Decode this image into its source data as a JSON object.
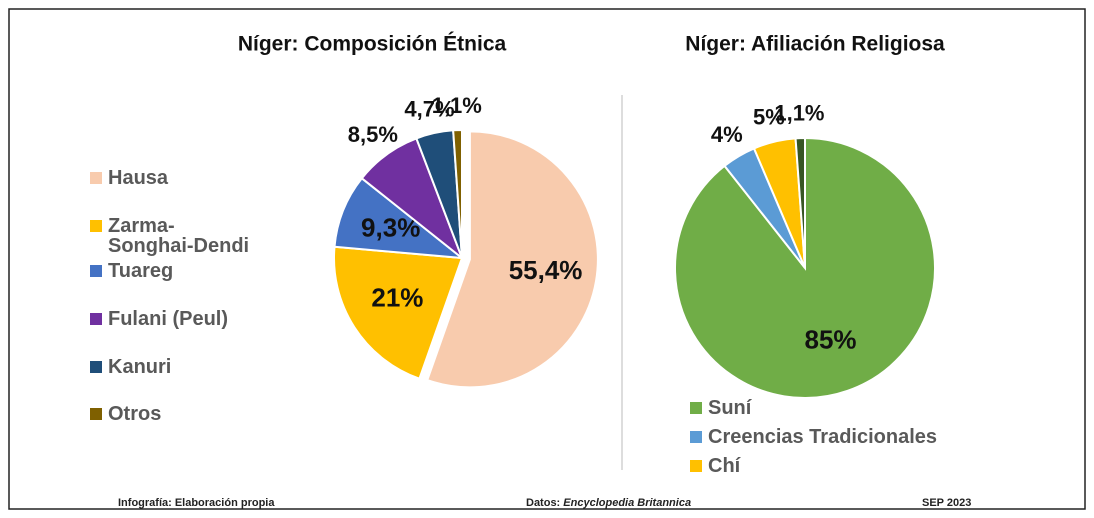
{
  "chart_data": [
    {
      "type": "pie",
      "title": "Níger: Composición  Étnica",
      "categories": [
        "Hausa",
        "Zarma-Songhai-Dendi",
        "Tuareg",
        "Fulani (Peul)",
        "Kanuri",
        "Otros"
      ],
      "values": [
        55.4,
        21,
        9.3,
        8.5,
        4.7,
        1.1
      ],
      "value_labels": [
        "55,4%",
        "21%",
        "9,3%",
        "8,5%",
        "4,7%",
        "1,1%"
      ],
      "colors": [
        "#f8cbad",
        "#ffc000",
        "#4472c4",
        "#7030a0",
        "#1f4e79",
        "#7f6000"
      ],
      "legend": "left"
    },
    {
      "type": "pie",
      "title": "Níger: Afiliación Religiosa",
      "categories": [
        "Suní",
        "Creencias Tradicionales",
        "Chí",
        null
      ],
      "values": [
        85,
        4,
        5,
        1.1
      ],
      "value_labels": [
        "85%",
        "4%",
        "5%",
        "1,1%"
      ],
      "colors": [
        "#70ad47",
        "#5b9bd5",
        "#ffc000",
        "#375623"
      ],
      "legend": "bottom"
    }
  ],
  "footer": {
    "left": "Infografía: Elaboración propia",
    "source_label": "Datos:",
    "source": "Encyclopedia Britannica",
    "date": "SEP  2023"
  }
}
